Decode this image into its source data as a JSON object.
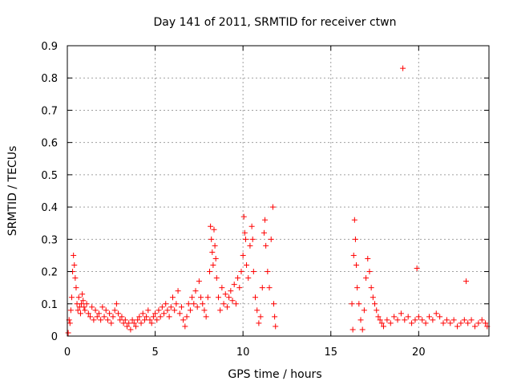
{
  "chart_data": {
    "type": "scatter",
    "title": "Day 141 of 2011, SRMTID for receiver ctwn",
    "xlabel": "GPS time / hours",
    "ylabel": "SRMTID / TECUs",
    "xlim": [
      0,
      24
    ],
    "ylim": [
      0,
      0.9
    ],
    "xticks": [
      0,
      5,
      10,
      15,
      20
    ],
    "yticks": [
      0,
      0.1,
      0.2,
      0.3,
      0.4,
      0.5,
      0.6,
      0.7,
      0.8,
      0.9
    ],
    "xtick_labels": [
      "0",
      "5",
      "10",
      "15",
      "20"
    ],
    "ytick_labels": [
      "0",
      "0.1",
      "0.2",
      "0.3",
      "0.4",
      "0.5",
      "0.6",
      "0.7",
      "0.8",
      "0.9"
    ],
    "grid": true,
    "marker": "+",
    "color": "#ff0000",
    "series": [
      {
        "name": "SRMTID",
        "points": [
          [
            0.05,
            0.01
          ],
          [
            0.1,
            0.05
          ],
          [
            0.15,
            0.04
          ],
          [
            0.2,
            0.08
          ],
          [
            0.25,
            0.12
          ],
          [
            0.3,
            0.2
          ],
          [
            0.35,
            0.25
          ],
          [
            0.4,
            0.22
          ],
          [
            0.45,
            0.18
          ],
          [
            0.5,
            0.15
          ],
          [
            0.55,
            0.1
          ],
          [
            0.6,
            0.08
          ],
          [
            0.65,
            0.12
          ],
          [
            0.7,
            0.09
          ],
          [
            0.75,
            0.07
          ],
          [
            0.8,
            0.1
          ],
          [
            0.85,
            0.13
          ],
          [
            0.9,
            0.11
          ],
          [
            0.95,
            0.09
          ],
          [
            1.0,
            0.08
          ],
          [
            1.1,
            0.1
          ],
          [
            1.2,
            0.07
          ],
          [
            1.3,
            0.06
          ],
          [
            1.4,
            0.09
          ],
          [
            1.5,
            0.05
          ],
          [
            1.6,
            0.08
          ],
          [
            1.7,
            0.06
          ],
          [
            1.8,
            0.07
          ],
          [
            1.9,
            0.05
          ],
          [
            2.0,
            0.09
          ],
          [
            2.1,
            0.06
          ],
          [
            2.2,
            0.08
          ],
          [
            2.3,
            0.05
          ],
          [
            2.4,
            0.07
          ],
          [
            2.5,
            0.04
          ],
          [
            2.6,
            0.06
          ],
          [
            2.7,
            0.08
          ],
          [
            2.8,
            0.1
          ],
          [
            2.9,
            0.07
          ],
          [
            3.0,
            0.05
          ],
          [
            3.1,
            0.06
          ],
          [
            3.2,
            0.04
          ],
          [
            3.3,
            0.05
          ],
          [
            3.4,
            0.03
          ],
          [
            3.5,
            0.04
          ],
          [
            3.6,
            0.02
          ],
          [
            3.7,
            0.05
          ],
          [
            3.8,
            0.04
          ],
          [
            3.9,
            0.03
          ],
          [
            4.0,
            0.05
          ],
          [
            4.1,
            0.06
          ],
          [
            4.2,
            0.04
          ],
          [
            4.3,
            0.07
          ],
          [
            4.4,
            0.05
          ],
          [
            4.5,
            0.06
          ],
          [
            4.6,
            0.08
          ],
          [
            4.7,
            0.05
          ],
          [
            4.8,
            0.04
          ],
          [
            4.9,
            0.06
          ],
          [
            5.0,
            0.07
          ],
          [
            5.1,
            0.05
          ],
          [
            5.2,
            0.08
          ],
          [
            5.3,
            0.06
          ],
          [
            5.4,
            0.09
          ],
          [
            5.5,
            0.07
          ],
          [
            5.6,
            0.1
          ],
          [
            5.7,
            0.08
          ],
          [
            5.8,
            0.06
          ],
          [
            5.9,
            0.09
          ],
          [
            6.0,
            0.12
          ],
          [
            6.1,
            0.08
          ],
          [
            6.2,
            0.1
          ],
          [
            6.3,
            0.14
          ],
          [
            6.4,
            0.07
          ],
          [
            6.5,
            0.09
          ],
          [
            6.6,
            0.05
          ],
          [
            6.7,
            0.03
          ],
          [
            6.8,
            0.06
          ],
          [
            6.9,
            0.1
          ],
          [
            7.0,
            0.08
          ],
          [
            7.1,
            0.12
          ],
          [
            7.2,
            0.1
          ],
          [
            7.3,
            0.14
          ],
          [
            7.4,
            0.09
          ],
          [
            7.5,
            0.17
          ],
          [
            7.6,
            0.12
          ],
          [
            7.7,
            0.1
          ],
          [
            7.8,
            0.08
          ],
          [
            7.9,
            0.06
          ],
          [
            8.0,
            0.12
          ],
          [
            8.1,
            0.2
          ],
          [
            8.15,
            0.34
          ],
          [
            8.2,
            0.3
          ],
          [
            8.25,
            0.26
          ],
          [
            8.3,
            0.22
          ],
          [
            8.35,
            0.33
          ],
          [
            8.4,
            0.28
          ],
          [
            8.45,
            0.24
          ],
          [
            8.5,
            0.18
          ],
          [
            8.6,
            0.12
          ],
          [
            8.7,
            0.08
          ],
          [
            8.8,
            0.15
          ],
          [
            8.9,
            0.1
          ],
          [
            9.0,
            0.13
          ],
          [
            9.1,
            0.09
          ],
          [
            9.2,
            0.12
          ],
          [
            9.3,
            0.14
          ],
          [
            9.4,
            0.11
          ],
          [
            9.5,
            0.16
          ],
          [
            9.6,
            0.1
          ],
          [
            9.7,
            0.18
          ],
          [
            9.8,
            0.15
          ],
          [
            9.9,
            0.2
          ],
          [
            10.0,
            0.25
          ],
          [
            10.05,
            0.37
          ],
          [
            10.1,
            0.32
          ],
          [
            10.15,
            0.3
          ],
          [
            10.2,
            0.22
          ],
          [
            10.3,
            0.18
          ],
          [
            10.4,
            0.28
          ],
          [
            10.5,
            0.34
          ],
          [
            10.55,
            0.3
          ],
          [
            10.6,
            0.2
          ],
          [
            10.7,
            0.12
          ],
          [
            10.8,
            0.08
          ],
          [
            10.9,
            0.04
          ],
          [
            11.0,
            0.06
          ],
          [
            11.1,
            0.15
          ],
          [
            11.2,
            0.32
          ],
          [
            11.25,
            0.36
          ],
          [
            11.3,
            0.28
          ],
          [
            11.4,
            0.2
          ],
          [
            11.5,
            0.15
          ],
          [
            11.6,
            0.3
          ],
          [
            11.7,
            0.4
          ],
          [
            11.75,
            0.1
          ],
          [
            11.8,
            0.06
          ],
          [
            11.85,
            0.03
          ],
          [
            16.2,
            0.1
          ],
          [
            16.25,
            0.02
          ],
          [
            16.3,
            0.25
          ],
          [
            16.35,
            0.36
          ],
          [
            16.4,
            0.3
          ],
          [
            16.45,
            0.22
          ],
          [
            16.5,
            0.15
          ],
          [
            16.6,
            0.1
          ],
          [
            16.7,
            0.05
          ],
          [
            16.8,
            0.02
          ],
          [
            16.9,
            0.08
          ],
          [
            17.0,
            0.18
          ],
          [
            17.1,
            0.24
          ],
          [
            17.2,
            0.2
          ],
          [
            17.3,
            0.15
          ],
          [
            17.4,
            0.12
          ],
          [
            17.5,
            0.1
          ],
          [
            17.6,
            0.08
          ],
          [
            17.7,
            0.06
          ],
          [
            17.8,
            0.05
          ],
          [
            17.9,
            0.04
          ],
          [
            18.0,
            0.03
          ],
          [
            18.2,
            0.05
          ],
          [
            18.4,
            0.04
          ],
          [
            18.6,
            0.06
          ],
          [
            18.8,
            0.05
          ],
          [
            19.0,
            0.07
          ],
          [
            19.1,
            0.83
          ],
          [
            19.2,
            0.05
          ],
          [
            19.4,
            0.06
          ],
          [
            19.6,
            0.04
          ],
          [
            19.8,
            0.05
          ],
          [
            19.9,
            0.21
          ],
          [
            20.0,
            0.06
          ],
          [
            20.2,
            0.05
          ],
          [
            20.4,
            0.04
          ],
          [
            20.6,
            0.06
          ],
          [
            20.8,
            0.05
          ],
          [
            21.0,
            0.07
          ],
          [
            21.2,
            0.06
          ],
          [
            21.4,
            0.04
          ],
          [
            21.6,
            0.05
          ],
          [
            21.8,
            0.04
          ],
          [
            22.0,
            0.05
          ],
          [
            22.2,
            0.03
          ],
          [
            22.4,
            0.04
          ],
          [
            22.6,
            0.05
          ],
          [
            22.7,
            0.17
          ],
          [
            22.8,
            0.04
          ],
          [
            23.0,
            0.05
          ],
          [
            23.2,
            0.03
          ],
          [
            23.4,
            0.04
          ],
          [
            23.6,
            0.05
          ],
          [
            23.8,
            0.04
          ],
          [
            23.9,
            0.03
          ]
        ]
      }
    ]
  }
}
